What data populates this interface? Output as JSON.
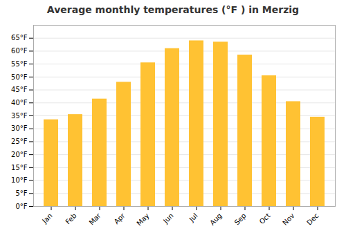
{
  "chart_data": {
    "type": "bar",
    "title": "Average monthly temperatures (°F ) in Merzig",
    "categories": [
      "Jan",
      "Feb",
      "Mar",
      "Apr",
      "May",
      "Jun",
      "Jul",
      "Aug",
      "Sep",
      "Oct",
      "Nov",
      "Dec"
    ],
    "values": [
      33.5,
      35.5,
      41.5,
      48.0,
      55.5,
      61.0,
      64.0,
      63.5,
      58.5,
      50.5,
      40.5,
      34.5
    ],
    "color": "#FFC233",
    "ylim": [
      0,
      70
    ],
    "yticks": [
      {
        "value": 0,
        "label": "0°F"
      },
      {
        "value": 5,
        "label": "5°F"
      },
      {
        "value": 10,
        "label": "10°F"
      },
      {
        "value": 15,
        "label": "15°F"
      },
      {
        "value": 20,
        "label": "20°F"
      },
      {
        "value": 25,
        "label": "25°F"
      },
      {
        "value": 30,
        "label": "30°F"
      },
      {
        "value": 35,
        "label": "35°F"
      },
      {
        "value": 40,
        "label": "40°F"
      },
      {
        "value": 45,
        "label": "45°F"
      },
      {
        "value": 50,
        "label": "50°F"
      },
      {
        "value": 55,
        "label": "55°F"
      },
      {
        "value": 60,
        "label": "60°F"
      },
      {
        "value": 65,
        "label": "65°F"
      }
    ],
    "grid": true
  }
}
